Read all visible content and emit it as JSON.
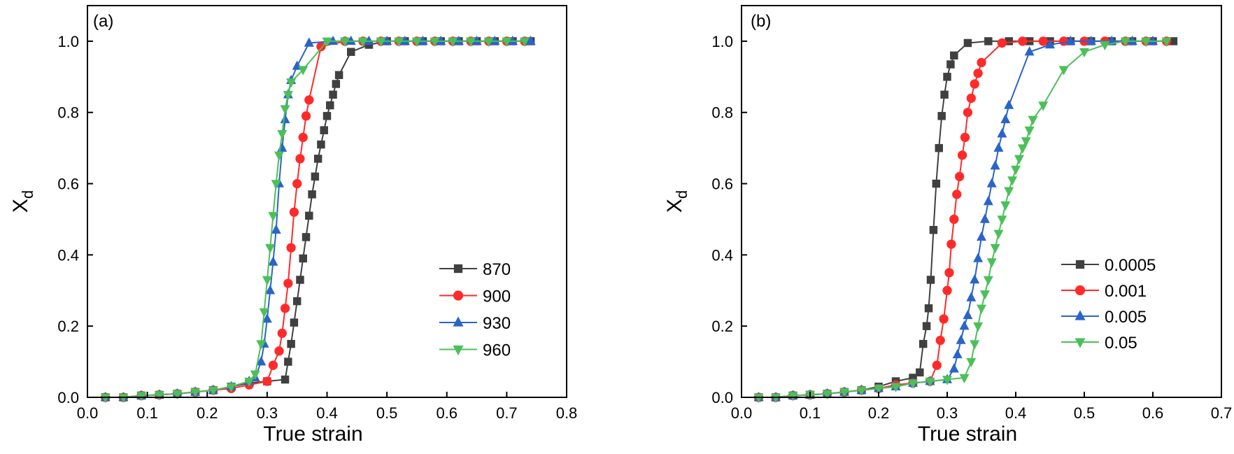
{
  "chart_data": [
    {
      "type": "line",
      "panel_label": "(a)",
      "xlabel": "True strain",
      "ylabel": "X",
      "ylabel_subscript": "d",
      "xlim": [
        0.0,
        0.8
      ],
      "ylim": [
        0.0,
        1.1
      ],
      "xticks": [
        0.0,
        0.1,
        0.2,
        0.3,
        0.4,
        0.5,
        0.6,
        0.7,
        0.8
      ],
      "yticks": [
        0.0,
        0.2,
        0.4,
        0.6,
        0.8,
        1.0
      ],
      "xtick_labels": [
        "0.0",
        "0.1",
        "0.2",
        "0.3",
        "0.4",
        "0.5",
        "0.6",
        "0.7",
        "0.8"
      ],
      "ytick_labels": [
        "0.0",
        "0.2",
        "0.4",
        "0.6",
        "0.8",
        "1.0"
      ],
      "grid": false,
      "legend_position": "bottom-right",
      "series": [
        {
          "name": "870",
          "color": "#404040",
          "marker": "square",
          "x": [
            0.03,
            0.06,
            0.09,
            0.12,
            0.15,
            0.18,
            0.21,
            0.24,
            0.27,
            0.3,
            0.33,
            0.335,
            0.34,
            0.345,
            0.35,
            0.355,
            0.36,
            0.365,
            0.37,
            0.375,
            0.38,
            0.385,
            0.39,
            0.395,
            0.4,
            0.405,
            0.41,
            0.415,
            0.42,
            0.44,
            0.47,
            0.5,
            0.53,
            0.56,
            0.59,
            0.62,
            0.65,
            0.68,
            0.71,
            0.74
          ],
          "y": [
            0.0,
            0.0,
            0.005,
            0.007,
            0.01,
            0.015,
            0.02,
            0.03,
            0.04,
            0.045,
            0.05,
            0.1,
            0.15,
            0.21,
            0.27,
            0.33,
            0.39,
            0.45,
            0.51,
            0.57,
            0.62,
            0.67,
            0.71,
            0.75,
            0.79,
            0.82,
            0.85,
            0.88,
            0.905,
            0.97,
            0.99,
            1.0,
            1.0,
            1.0,
            1.0,
            1.0,
            1.0,
            1.0,
            1.0,
            1.0
          ]
        },
        {
          "name": "900",
          "color": "#ff2a2a",
          "marker": "circle",
          "x": [
            0.03,
            0.06,
            0.09,
            0.12,
            0.15,
            0.18,
            0.21,
            0.24,
            0.27,
            0.3,
            0.31,
            0.32,
            0.325,
            0.33,
            0.335,
            0.34,
            0.345,
            0.35,
            0.355,
            0.36,
            0.365,
            0.37,
            0.39,
            0.43,
            0.46,
            0.49,
            0.52,
            0.55,
            0.58,
            0.61,
            0.64,
            0.67,
            0.7,
            0.73
          ],
          "y": [
            0.0,
            0.0,
            0.005,
            0.007,
            0.01,
            0.015,
            0.02,
            0.025,
            0.035,
            0.045,
            0.09,
            0.13,
            0.18,
            0.25,
            0.32,
            0.42,
            0.52,
            0.6,
            0.67,
            0.73,
            0.79,
            0.835,
            0.985,
            1.0,
            1.0,
            1.0,
            1.0,
            1.0,
            1.0,
            1.0,
            1.0,
            1.0,
            1.0,
            1.0
          ]
        },
        {
          "name": "930",
          "color": "#2a64c8",
          "marker": "triangle-up",
          "x": [
            0.03,
            0.06,
            0.09,
            0.12,
            0.15,
            0.18,
            0.21,
            0.24,
            0.27,
            0.28,
            0.29,
            0.295,
            0.3,
            0.305,
            0.31,
            0.315,
            0.32,
            0.325,
            0.33,
            0.335,
            0.34,
            0.35,
            0.37,
            0.41,
            0.44,
            0.47,
            0.5,
            0.53,
            0.56,
            0.59,
            0.62,
            0.65,
            0.68,
            0.71,
            0.74
          ],
          "y": [
            0.0,
            0.0,
            0.005,
            0.007,
            0.01,
            0.015,
            0.02,
            0.03,
            0.045,
            0.055,
            0.1,
            0.15,
            0.22,
            0.3,
            0.38,
            0.47,
            0.6,
            0.7,
            0.78,
            0.85,
            0.89,
            0.93,
            0.995,
            1.0,
            1.0,
            1.0,
            1.0,
            1.0,
            1.0,
            1.0,
            1.0,
            1.0,
            1.0,
            1.0,
            1.0
          ]
        },
        {
          "name": "960",
          "color": "#4cbf5a",
          "marker": "triangle-down",
          "x": [
            0.03,
            0.06,
            0.09,
            0.12,
            0.15,
            0.18,
            0.21,
            0.24,
            0.27,
            0.28,
            0.29,
            0.295,
            0.3,
            0.305,
            0.31,
            0.315,
            0.32,
            0.325,
            0.33,
            0.335,
            0.34,
            0.36,
            0.4,
            0.43,
            0.46,
            0.49,
            0.52,
            0.55,
            0.58,
            0.61,
            0.64,
            0.67,
            0.7,
            0.73
          ],
          "y": [
            0.0,
            0.0,
            0.005,
            0.007,
            0.01,
            0.015,
            0.02,
            0.03,
            0.045,
            0.065,
            0.15,
            0.24,
            0.33,
            0.42,
            0.51,
            0.6,
            0.68,
            0.74,
            0.81,
            0.85,
            0.885,
            0.92,
            1.0,
            1.0,
            1.0,
            1.0,
            1.0,
            1.0,
            1.0,
            1.0,
            1.0,
            1.0,
            1.0,
            1.0
          ]
        }
      ]
    },
    {
      "type": "line",
      "panel_label": "(b)",
      "xlabel": "True strain",
      "ylabel": "X",
      "ylabel_subscript": "d",
      "xlim": [
        0.0,
        0.7
      ],
      "ylim": [
        0.0,
        1.1
      ],
      "xticks": [
        0.0,
        0.1,
        0.2,
        0.3,
        0.4,
        0.5,
        0.6,
        0.7
      ],
      "yticks": [
        0.0,
        0.2,
        0.4,
        0.6,
        0.8,
        1.0
      ],
      "xtick_labels": [
        "0.0",
        "0.1",
        "0.2",
        "0.3",
        "0.4",
        "0.5",
        "0.6",
        "0.7"
      ],
      "ytick_labels": [
        "0.0",
        "0.2",
        "0.4",
        "0.6",
        "0.8",
        "1.0"
      ],
      "grid": false,
      "legend_position": "bottom-right",
      "series": [
        {
          "name": "0.0005",
          "color": "#404040",
          "marker": "square",
          "x": [
            0.025,
            0.05,
            0.075,
            0.1,
            0.125,
            0.15,
            0.175,
            0.2,
            0.225,
            0.25,
            0.26,
            0.265,
            0.27,
            0.273,
            0.276,
            0.28,
            0.284,
            0.288,
            0.292,
            0.296,
            0.3,
            0.305,
            0.31,
            0.33,
            0.36,
            0.39,
            0.42,
            0.45,
            0.48,
            0.51,
            0.54,
            0.57,
            0.6,
            0.63
          ],
          "y": [
            0.0,
            0.0,
            0.005,
            0.007,
            0.01,
            0.015,
            0.02,
            0.03,
            0.045,
            0.055,
            0.07,
            0.15,
            0.2,
            0.25,
            0.33,
            0.47,
            0.6,
            0.7,
            0.79,
            0.85,
            0.9,
            0.935,
            0.96,
            0.995,
            1.0,
            1.0,
            1.0,
            1.0,
            1.0,
            1.0,
            1.0,
            1.0,
            1.0,
            1.0
          ]
        },
        {
          "name": "0.001",
          "color": "#ff2a2a",
          "marker": "circle",
          "x": [
            0.025,
            0.05,
            0.075,
            0.1,
            0.125,
            0.15,
            0.175,
            0.2,
            0.225,
            0.25,
            0.275,
            0.285,
            0.29,
            0.295,
            0.3,
            0.303,
            0.306,
            0.31,
            0.314,
            0.318,
            0.322,
            0.326,
            0.33,
            0.335,
            0.34,
            0.345,
            0.35,
            0.38,
            0.41,
            0.44,
            0.47,
            0.5,
            0.53,
            0.56,
            0.59,
            0.62
          ],
          "y": [
            0.0,
            0.0,
            0.005,
            0.007,
            0.01,
            0.015,
            0.02,
            0.025,
            0.035,
            0.04,
            0.045,
            0.09,
            0.16,
            0.22,
            0.3,
            0.35,
            0.43,
            0.5,
            0.57,
            0.62,
            0.68,
            0.73,
            0.8,
            0.84,
            0.88,
            0.91,
            0.94,
            0.995,
            1.0,
            1.0,
            1.0,
            1.0,
            1.0,
            1.0,
            1.0,
            1.0
          ]
        },
        {
          "name": "0.005",
          "color": "#2a64c8",
          "marker": "triangle-up",
          "x": [
            0.025,
            0.05,
            0.075,
            0.1,
            0.125,
            0.15,
            0.175,
            0.2,
            0.225,
            0.25,
            0.275,
            0.3,
            0.31,
            0.315,
            0.32,
            0.325,
            0.33,
            0.335,
            0.34,
            0.345,
            0.35,
            0.355,
            0.36,
            0.365,
            0.37,
            0.375,
            0.38,
            0.385,
            0.39,
            0.42,
            0.45,
            0.48,
            0.51,
            0.54,
            0.57,
            0.6
          ],
          "y": [
            0.0,
            0.0,
            0.005,
            0.007,
            0.01,
            0.015,
            0.02,
            0.025,
            0.03,
            0.04,
            0.045,
            0.05,
            0.08,
            0.12,
            0.16,
            0.2,
            0.23,
            0.28,
            0.33,
            0.39,
            0.45,
            0.5,
            0.55,
            0.6,
            0.65,
            0.7,
            0.74,
            0.78,
            0.82,
            0.97,
            0.99,
            1.0,
            1.0,
            1.0,
            1.0,
            1.0
          ]
        },
        {
          "name": "0.05",
          "color": "#4cbf5a",
          "marker": "triangle-down",
          "x": [
            0.025,
            0.05,
            0.075,
            0.1,
            0.125,
            0.15,
            0.175,
            0.2,
            0.225,
            0.25,
            0.275,
            0.3,
            0.325,
            0.335,
            0.34,
            0.345,
            0.35,
            0.355,
            0.36,
            0.365,
            0.37,
            0.375,
            0.38,
            0.385,
            0.39,
            0.395,
            0.4,
            0.405,
            0.41,
            0.415,
            0.42,
            0.425,
            0.44,
            0.47,
            0.5,
            0.53,
            0.56,
            0.59,
            0.62
          ],
          "y": [
            0.0,
            0.0,
            0.005,
            0.007,
            0.01,
            0.015,
            0.02,
            0.025,
            0.03,
            0.04,
            0.045,
            0.05,
            0.055,
            0.1,
            0.15,
            0.2,
            0.25,
            0.29,
            0.33,
            0.38,
            0.42,
            0.46,
            0.5,
            0.54,
            0.58,
            0.61,
            0.64,
            0.67,
            0.7,
            0.72,
            0.75,
            0.78,
            0.82,
            0.92,
            0.97,
            0.99,
            1.0,
            1.0,
            1.0
          ]
        }
      ]
    }
  ]
}
